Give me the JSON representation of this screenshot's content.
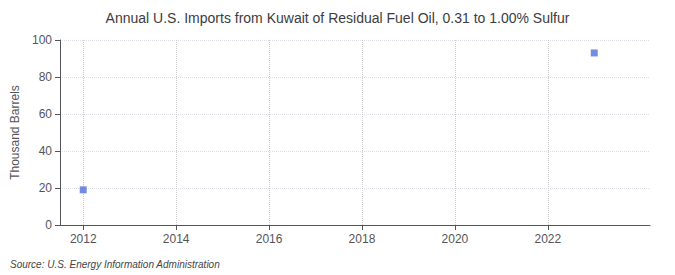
{
  "chart_data": {
    "type": "scatter",
    "title": "Annual U.S. Imports from Kuwait of Residual Fuel Oil, 0.31 to 1.00% Sulfur",
    "ylabel": "Thousand Barrels",
    "annotations": [
      "Source: U.S. Energy Information Administration"
    ],
    "x": [
      2012,
      2023
    ],
    "values": [
      19,
      93
    ],
    "marker": "square",
    "xlim": [
      2011.5,
      2024.2
    ],
    "ylim": [
      0,
      100
    ],
    "xticks": [
      2012,
      2014,
      2016,
      2018,
      2020,
      2022
    ],
    "yticks": [
      0,
      20,
      40,
      60,
      80,
      100
    ],
    "grid": true
  }
}
